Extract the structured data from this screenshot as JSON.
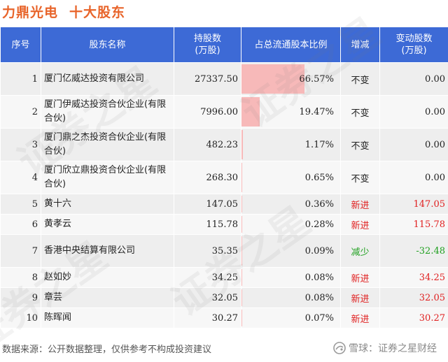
{
  "title": {
    "company": "力鼎光电",
    "subtitle": "十大股东"
  },
  "table": {
    "headers": {
      "index": "序号",
      "name": "股东名称",
      "shares": "持股数\n(万股)",
      "ratio": "占总流通股本比例",
      "change": "增减",
      "delta": "变动股数\n(万股)"
    },
    "rows": [
      {
        "index": "1",
        "name": "厦门亿威达投资有限公司",
        "shares": "27337.50",
        "ratio": "66.57%",
        "ratio_value": 66.57,
        "change": "不变",
        "change_type": "same",
        "delta": "0.00"
      },
      {
        "index": "2",
        "name": "厦门伊威达投资合伙企业(有限合伙)",
        "shares": "7996.00",
        "ratio": "19.47%",
        "ratio_value": 19.47,
        "change": "不变",
        "change_type": "same",
        "delta": "0.00"
      },
      {
        "index": "3",
        "name": "厦门鼎之杰投资合伙企业(有限合伙)",
        "shares": "482.23",
        "ratio": "1.17%",
        "ratio_value": 1.17,
        "change": "不变",
        "change_type": "same",
        "delta": "0.00"
      },
      {
        "index": "4",
        "name": "厦门欣立鼎投资合伙企业(有限合伙)",
        "shares": "268.30",
        "ratio": "0.65%",
        "ratio_value": 0.65,
        "change": "不变",
        "change_type": "same",
        "delta": "0.00"
      },
      {
        "index": "5",
        "name": "黄十六",
        "shares": "147.05",
        "ratio": "0.36%",
        "ratio_value": 0.36,
        "change": "新进",
        "change_type": "up",
        "delta": "147.05"
      },
      {
        "index": "6",
        "name": "黄孝云",
        "shares": "115.78",
        "ratio": "0.28%",
        "ratio_value": 0.28,
        "change": "新进",
        "change_type": "up",
        "delta": "115.78"
      },
      {
        "index": "7",
        "name": "香港中央结算有限公司",
        "shares": "35.35",
        "ratio": "0.09%",
        "ratio_value": 0.09,
        "change": "减少",
        "change_type": "down",
        "delta": "-32.48"
      },
      {
        "index": "8",
        "name": "赵如妙",
        "shares": "34.25",
        "ratio": "0.08%",
        "ratio_value": 0.08,
        "change": "新进",
        "change_type": "up",
        "delta": "34.25"
      },
      {
        "index": "9",
        "name": "章芸",
        "shares": "32.05",
        "ratio": "0.08%",
        "ratio_value": 0.08,
        "change": "新进",
        "change_type": "up",
        "delta": "32.05"
      },
      {
        "index": "10",
        "name": "陈晖闻",
        "shares": "30.27",
        "ratio": "0.07%",
        "ratio_value": 0.07,
        "change": "新进",
        "change_type": "up",
        "delta": "30.27"
      }
    ]
  },
  "footer": {
    "source": "数据来源：公开数据整理，仅供参考不构成投资建议",
    "brand": "雪球：证券之星财经"
  },
  "watermark": {
    "text": "证券之星"
  },
  "colors": {
    "title": "#e8642a",
    "header_bg": "#3d6ad6",
    "bar": "#f7b9b9",
    "up": "#e02020",
    "down": "#20a020"
  },
  "icons": {
    "brand_icon": "snowball-icon"
  }
}
